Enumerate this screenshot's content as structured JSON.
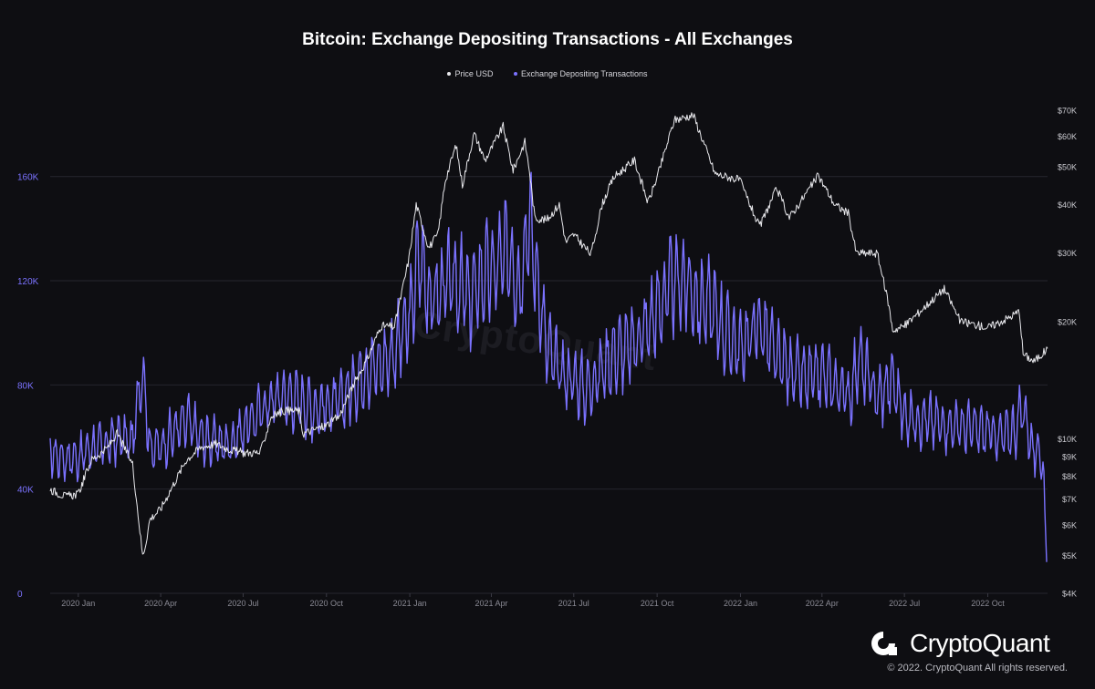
{
  "chart_data": {
    "type": "line",
    "title": "Bitcoin: Exchange Depositing Transactions - All Exchanges",
    "legend_position": "top-center",
    "grid": true,
    "x_ticks": [
      "2020 Jan",
      "2020 Apr",
      "2020 Jul",
      "2020 Oct",
      "2021 Jan",
      "2021 Apr",
      "2021 Jul",
      "2021 Oct",
      "2022 Jan",
      "2022 Apr",
      "2022 Jul",
      "2022 Oct"
    ],
    "x_range": [
      "2019-12-01",
      "2022-12-06"
    ],
    "y_left": {
      "range": [
        0,
        190000
      ],
      "ticks": [
        0,
        40000,
        80000,
        120000,
        160000
      ],
      "tick_labels": [
        "0",
        "40K",
        "80K",
        "120K",
        "160K"
      ]
    },
    "y_right": {
      "scale": "log",
      "range": [
        4000,
        75000
      ],
      "ticks": [
        4000,
        5000,
        6000,
        7000,
        8000,
        9000,
        10000,
        20000,
        30000,
        40000,
        50000,
        60000,
        70000
      ],
      "tick_labels": [
        "$4K",
        "$5K",
        "$6K",
        "$7K",
        "$8K",
        "$9K",
        "$10K",
        "$20K",
        "$30K",
        "$40K",
        "$50K",
        "$60K",
        "$70K"
      ]
    },
    "series": [
      {
        "name": "Price USD",
        "axis": "right",
        "color": "#e8e8ec",
        "points": [
          [
            "2019-12-01",
            7400
          ],
          [
            "2019-12-18",
            7100
          ],
          [
            "2020-01-01",
            7200
          ],
          [
            "2020-01-15",
            8800
          ],
          [
            "2020-02-01",
            9400
          ],
          [
            "2020-02-13",
            10300
          ],
          [
            "2020-03-01",
            8600
          ],
          [
            "2020-03-12",
            5000
          ],
          [
            "2020-03-15",
            5300
          ],
          [
            "2020-03-20",
            6200
          ],
          [
            "2020-04-01",
            6600
          ],
          [
            "2020-04-29",
            8800
          ],
          [
            "2020-05-15",
            9500
          ],
          [
            "2020-06-01",
            9700
          ],
          [
            "2020-06-15",
            9400
          ],
          [
            "2020-07-01",
            9200
          ],
          [
            "2020-07-20",
            9200
          ],
          [
            "2020-08-01",
            11400
          ],
          [
            "2020-08-15",
            11800
          ],
          [
            "2020-09-01",
            11800
          ],
          [
            "2020-09-05",
            10300
          ],
          [
            "2020-09-30",
            10800
          ],
          [
            "2020-10-15",
            11400
          ],
          [
            "2020-10-31",
            13800
          ],
          [
            "2020-11-15",
            16000
          ],
          [
            "2020-11-30",
            19500
          ],
          [
            "2020-12-15",
            19400
          ],
          [
            "2020-12-31",
            29000
          ],
          [
            "2021-01-08",
            40000
          ],
          [
            "2021-01-22",
            31000
          ],
          [
            "2021-02-01",
            33500
          ],
          [
            "2021-02-09",
            46000
          ],
          [
            "2021-02-21",
            57000
          ],
          [
            "2021-02-28",
            45000
          ],
          [
            "2021-03-13",
            61000
          ],
          [
            "2021-03-25",
            52000
          ],
          [
            "2021-04-14",
            63500
          ],
          [
            "2021-04-25",
            49000
          ],
          [
            "2021-05-08",
            58000
          ],
          [
            "2021-05-13",
            49000
          ],
          [
            "2021-05-19",
            37000
          ],
          [
            "2021-06-01",
            36500
          ],
          [
            "2021-06-15",
            40000
          ],
          [
            "2021-06-22",
            32000
          ],
          [
            "2021-07-01",
            33500
          ],
          [
            "2021-07-20",
            29800
          ],
          [
            "2021-08-01",
            39900
          ],
          [
            "2021-08-14",
            47000
          ],
          [
            "2021-09-06",
            52000
          ],
          [
            "2021-09-21",
            40500
          ],
          [
            "2021-10-01",
            47000
          ],
          [
            "2021-10-20",
            66000
          ],
          [
            "2021-11-10",
            68000
          ],
          [
            "2021-11-26",
            54000
          ],
          [
            "2021-12-04",
            48000
          ],
          [
            "2021-12-31",
            46300
          ],
          [
            "2022-01-22",
            35000
          ],
          [
            "2022-02-10",
            44000
          ],
          [
            "2022-02-24",
            37000
          ],
          [
            "2022-03-28",
            47500
          ],
          [
            "2022-04-15",
            40000
          ],
          [
            "2022-04-30",
            38000
          ],
          [
            "2022-05-09",
            30000
          ],
          [
            "2022-06-01",
            30000
          ],
          [
            "2022-06-13",
            22500
          ],
          [
            "2022-06-18",
            19000
          ],
          [
            "2022-07-01",
            19500
          ],
          [
            "2022-08-14",
            24300
          ],
          [
            "2022-09-01",
            20000
          ],
          [
            "2022-09-15",
            19700
          ],
          [
            "2022-10-01",
            19300
          ],
          [
            "2022-10-25",
            20500
          ],
          [
            "2022-11-05",
            21300
          ],
          [
            "2022-11-09",
            16500
          ],
          [
            "2022-11-21",
            15800
          ],
          [
            "2022-12-06",
            17000
          ]
        ]
      },
      {
        "name": "Exchange Depositing Transactions",
        "axis": "left",
        "color": "#7b72ff",
        "points": [
          [
            "2019-12-01",
            54000
          ],
          [
            "2019-12-15",
            52000
          ],
          [
            "2020-01-01",
            52000
          ],
          [
            "2020-01-15",
            56000
          ],
          [
            "2020-02-01",
            57000
          ],
          [
            "2020-02-15",
            60000
          ],
          [
            "2020-03-01",
            58000
          ],
          [
            "2020-03-12",
            88000
          ],
          [
            "2020-03-20",
            56000
          ],
          [
            "2020-04-01",
            56000
          ],
          [
            "2020-04-15",
            62000
          ],
          [
            "2020-05-01",
            66000
          ],
          [
            "2020-05-15",
            60000
          ],
          [
            "2020-06-01",
            58000
          ],
          [
            "2020-06-15",
            57000
          ],
          [
            "2020-07-01",
            63000
          ],
          [
            "2020-07-15",
            68000
          ],
          [
            "2020-08-01",
            74000
          ],
          [
            "2020-08-15",
            76000
          ],
          [
            "2020-09-01",
            74000
          ],
          [
            "2020-09-15",
            71000
          ],
          [
            "2020-10-01",
            72000
          ],
          [
            "2020-10-15",
            73000
          ],
          [
            "2020-11-01",
            80000
          ],
          [
            "2020-11-15",
            86000
          ],
          [
            "2020-12-01",
            88000
          ],
          [
            "2020-12-15",
            93000
          ],
          [
            "2021-01-01",
            105000
          ],
          [
            "2021-01-11",
            130000
          ],
          [
            "2021-01-25",
            112000
          ],
          [
            "2021-02-08",
            118000
          ],
          [
            "2021-02-22",
            120000
          ],
          [
            "2021-03-08",
            112000
          ],
          [
            "2021-03-22",
            122000
          ],
          [
            "2021-04-05",
            124000
          ],
          [
            "2021-04-20",
            132000
          ],
          [
            "2021-05-02",
            118000
          ],
          [
            "2021-05-12",
            145000
          ],
          [
            "2021-05-20",
            125000
          ],
          [
            "2021-06-01",
            95000
          ],
          [
            "2021-06-15",
            85000
          ],
          [
            "2021-07-01",
            82000
          ],
          [
            "2021-07-15",
            78000
          ],
          [
            "2021-08-01",
            86000
          ],
          [
            "2021-08-15",
            92000
          ],
          [
            "2021-09-01",
            94000
          ],
          [
            "2021-09-15",
            100000
          ],
          [
            "2021-10-01",
            108000
          ],
          [
            "2021-10-15",
            118000
          ],
          [
            "2021-11-01",
            120000
          ],
          [
            "2021-11-15",
            112000
          ],
          [
            "2021-12-01",
            110000
          ],
          [
            "2021-12-15",
            100000
          ],
          [
            "2022-01-01",
            94000
          ],
          [
            "2022-01-22",
            104000
          ],
          [
            "2022-02-10",
            90000
          ],
          [
            "2022-03-01",
            85000
          ],
          [
            "2022-03-15",
            82000
          ],
          [
            "2022-04-01",
            84000
          ],
          [
            "2022-04-15",
            80000
          ],
          [
            "2022-05-01",
            76000
          ],
          [
            "2022-05-12",
            90000
          ],
          [
            "2022-06-01",
            75000
          ],
          [
            "2022-06-18",
            82000
          ],
          [
            "2022-07-01",
            68000
          ],
          [
            "2022-08-01",
            66000
          ],
          [
            "2022-09-01",
            64000
          ],
          [
            "2022-10-01",
            62000
          ],
          [
            "2022-10-15",
            60000
          ],
          [
            "2022-11-01",
            63000
          ],
          [
            "2022-11-09",
            72000
          ],
          [
            "2022-11-20",
            54000
          ],
          [
            "2022-12-01",
            52000
          ],
          [
            "2022-12-05",
            12000
          ]
        ]
      }
    ]
  },
  "brand": {
    "name": "CryptoQuant",
    "copyright": "© 2022. CryptoQuant All rights reserved.",
    "watermark": "CryptoQuant"
  }
}
